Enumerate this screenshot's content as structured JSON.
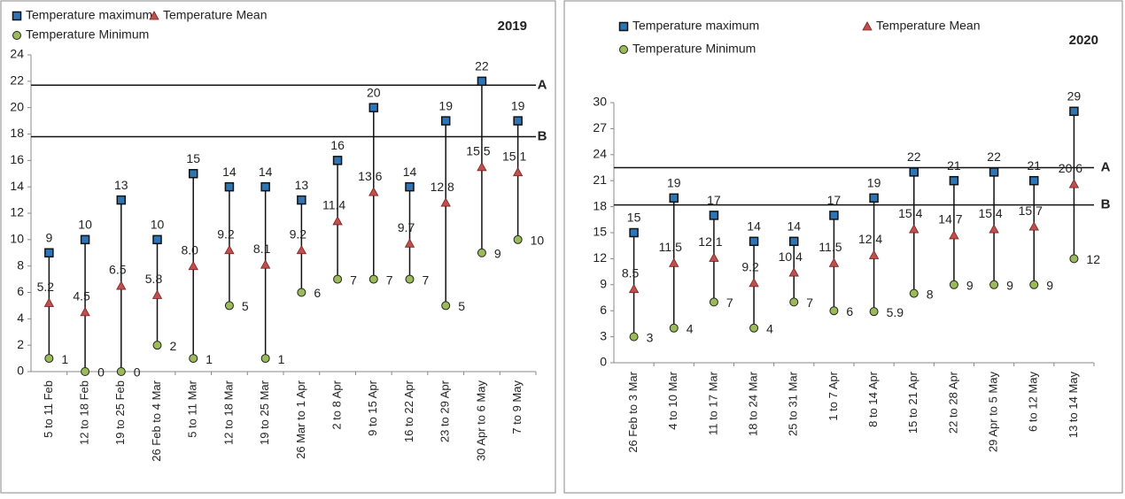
{
  "chart_data": [
    {
      "type": "range-dot",
      "title": "2019",
      "categories": [
        "5 to 11 Feb",
        "12 to 18 Feb",
        "19 to 25 Feb",
        "26 Feb to 4 Mar",
        "5 to 11 Mar",
        "12 to 18 Mar",
        "19 to 25 Mar",
        "26 Mar to 1 Apr",
        "2 to 8 Apr",
        "9 to 15 Apr",
        "16 to 22 Apr",
        "23 to 29 Apr",
        "30 Apr to 6 May",
        "7 to 9 May"
      ],
      "series": [
        {
          "name": "Temperature maximum",
          "color": "#2e75b6",
          "values": [
            9,
            10,
            13,
            10,
            15,
            14,
            14,
            13,
            16,
            20,
            14,
            19,
            22,
            19
          ]
        },
        {
          "name": "Temperature Mean",
          "color": "#c0504d",
          "values": [
            5.2,
            4.5,
            6.5,
            5.8,
            8.0,
            9.2,
            8.1,
            9.2,
            11.4,
            13.6,
            9.7,
            12.8,
            15.5,
            15.1
          ],
          "value_labels": [
            "5.2",
            "4.5",
            "6.5",
            "5.8",
            "8.0",
            "9.2",
            "8.1",
            "9.2",
            "11.4",
            "13.6",
            "9.7",
            "12.8",
            "15.5",
            "15.1"
          ]
        },
        {
          "name": "Temperature Minimum",
          "color": "#9bbb59",
          "values": [
            1,
            0,
            0,
            2,
            1,
            5,
            1,
            6,
            7,
            7,
            7,
            5,
            9,
            10
          ]
        }
      ],
      "ylim": [
        0,
        24
      ],
      "yticks": [
        0,
        2,
        4,
        6,
        8,
        10,
        12,
        14,
        16,
        18,
        20,
        22,
        24
      ],
      "reference_lines": [
        {
          "label": "A",
          "value": 21.7
        },
        {
          "label": "B",
          "value": 17.8
        }
      ]
    },
    {
      "type": "range-dot",
      "title": "2020",
      "categories": [
        "26 Feb to 3 Mar",
        "4 to 10 Mar",
        "11 to 17 Mar",
        "18 to 24 Mar",
        "25 to 31 Mar",
        "1 to 7 Apr",
        "8 to 14 Apr",
        "15 to 21 Apr",
        "22 to 28 Apr",
        "29 Apr to 5 May",
        "6 to 12 May",
        "13 to 14 May"
      ],
      "series": [
        {
          "name": "Temperature maximum",
          "color": "#2e75b6",
          "values": [
            15,
            19,
            17,
            14,
            14,
            17,
            19,
            22,
            21,
            22,
            21,
            29
          ]
        },
        {
          "name": "Temperature Mean",
          "color": "#c0504d",
          "values": [
            8.5,
            11.5,
            12.1,
            9.2,
            10.4,
            11.5,
            12.4,
            15.4,
            14.7,
            15.4,
            15.7,
            20.6
          ]
        },
        {
          "name": "Temperature Minimum",
          "color": "#9bbb59",
          "values": [
            3,
            4,
            7,
            4,
            7,
            6,
            5.9,
            8,
            9,
            9,
            9,
            12
          ]
        }
      ],
      "ylim": [
        0,
        30
      ],
      "yticks": [
        0,
        3,
        6,
        9,
        12,
        15,
        18,
        21,
        24,
        27,
        30
      ],
      "reference_lines": [
        {
          "label": "A",
          "value": 22.5
        },
        {
          "label": "B",
          "value": 18.2
        }
      ]
    }
  ]
}
